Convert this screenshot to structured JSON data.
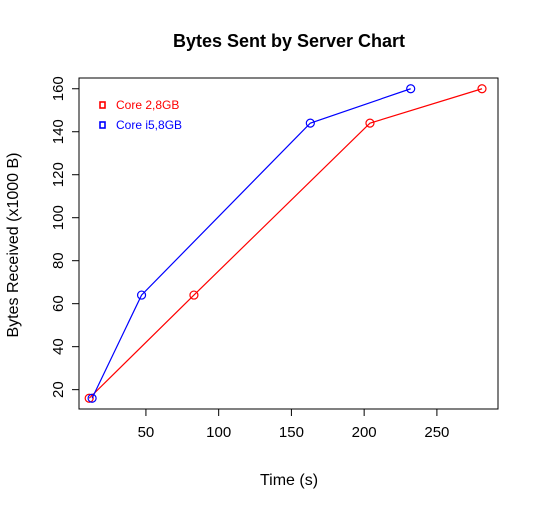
{
  "chart_data": {
    "type": "line",
    "title": "Bytes Sent by Server Chart",
    "xlabel": "Time (s)",
    "ylabel": "Bytes Received (x1000 B)",
    "xlim": [
      4,
      292
    ],
    "ylim": [
      11,
      165
    ],
    "xticks": [
      50,
      100,
      150,
      200,
      250
    ],
    "yticks": [
      20,
      40,
      60,
      80,
      100,
      120,
      140,
      160
    ],
    "grid": false,
    "legend_position": "top-left",
    "series": [
      {
        "name": "Core 2,8GB",
        "color": "#ff0000",
        "points": [
          [
            11,
            16
          ],
          [
            83,
            64
          ],
          [
            204,
            144
          ],
          [
            281,
            160
          ]
        ]
      },
      {
        "name": "Core i5,8GB",
        "color": "#0000ff",
        "points": [
          [
            13,
            16
          ],
          [
            47,
            64
          ],
          [
            163,
            144
          ],
          [
            232,
            160
          ]
        ]
      }
    ]
  }
}
